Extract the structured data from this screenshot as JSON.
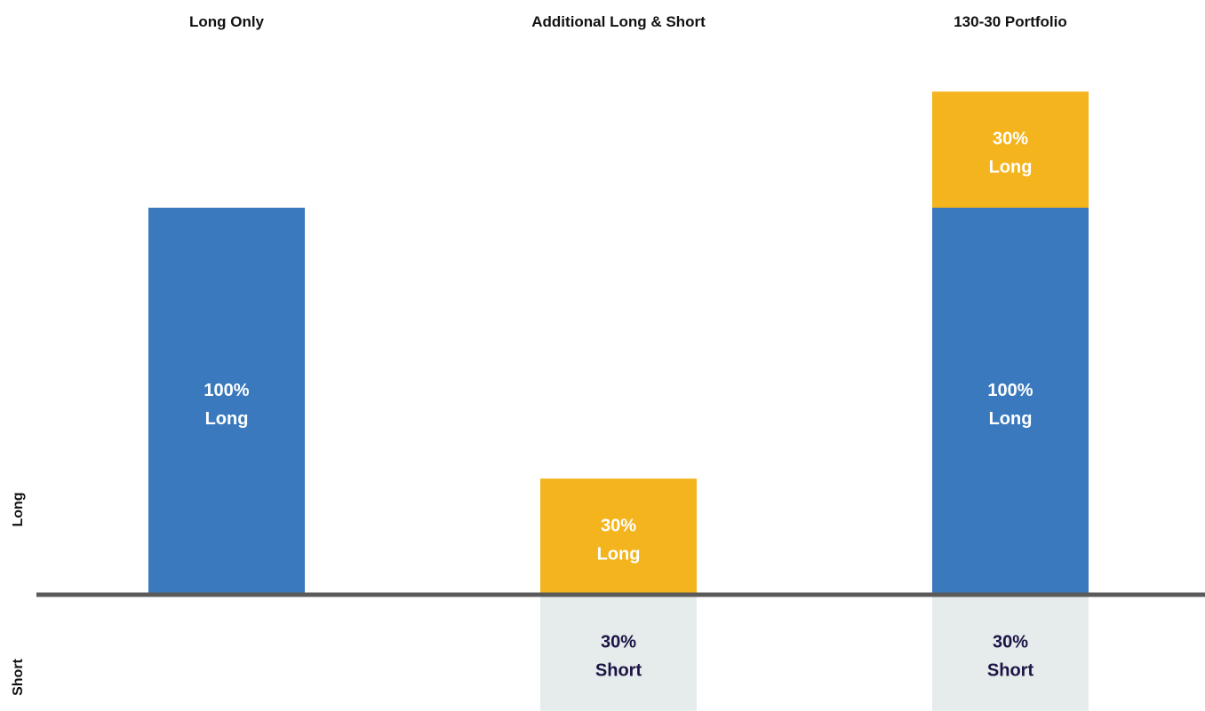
{
  "chart_data": {
    "type": "bar",
    "stacked": true,
    "categories": [
      "Long Only",
      "Additional Long & Short",
      "130-30 Portfolio"
    ],
    "ylabel_positive": "Long",
    "ylabel_negative": "Short",
    "segments": [
      {
        "category": "Long Only",
        "value": 100,
        "label_top": "100%",
        "label_bottom": "Long",
        "color": "#3a79bd",
        "text_color": "#ffffff"
      },
      {
        "category": "Additional Long & Short",
        "value": 30,
        "label_top": "30%",
        "label_bottom": "Long",
        "color": "#f3b41d",
        "text_color": "#ffffff"
      },
      {
        "category": "Additional Long & Short",
        "value": -30,
        "label_top": "30%",
        "label_bottom": "Short",
        "color": "#e6eceb",
        "text_color": "#1c1446"
      },
      {
        "category": "130-30 Portfolio",
        "value": 100,
        "label_top": "100%",
        "label_bottom": "Long",
        "color": "#3a79bd",
        "text_color": "#ffffff"
      },
      {
        "category": "130-30 Portfolio",
        "value": 30,
        "label_top": "30%",
        "label_bottom": "Long",
        "color": "#f3b41d",
        "text_color": "#ffffff"
      },
      {
        "category": "130-30 Portfolio",
        "value": -30,
        "label_top": "30%",
        "label_bottom": "Short",
        "color": "#e6eceb",
        "text_color": "#1c1446"
      }
    ],
    "ylim": [
      -30,
      130
    ],
    "axis_color": "#5a5a5a"
  }
}
